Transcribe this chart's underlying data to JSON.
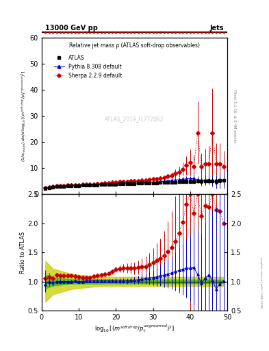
{
  "title_top": "13000 GeV pp",
  "title_right": "Jets",
  "plot_title": "Relative jet mass ρ (ATLAS soft-drop observables)",
  "watermark": "ATLAS_2019_I1772062",
  "right_label_top": "Rivet 3.1.10, ≥ 3.4M events",
  "right_label_bottom": "mcplots.cern.ch [arXiv:1306.3436]",
  "ylabel_ratio": "Ratio to ATLAS",
  "xlim": [
    0,
    50
  ],
  "ylim_main": [
    0,
    60
  ],
  "ylim_ratio": [
    0.5,
    2.5
  ],
  "yticks_main": [
    0,
    10,
    20,
    30,
    40,
    50,
    60
  ],
  "yticks_ratio": [
    0.5,
    1.0,
    1.5,
    2.0,
    2.5
  ],
  "xticks": [
    0,
    10,
    20,
    30,
    40,
    50
  ],
  "atlas_x": [
    1.0,
    2.0,
    3.0,
    4.0,
    5.0,
    6.0,
    7.0,
    8.0,
    9.0,
    10.0,
    11.0,
    12.0,
    13.0,
    14.0,
    15.0,
    16.0,
    17.0,
    18.0,
    19.0,
    20.0,
    21.0,
    22.0,
    23.0,
    24.0,
    25.0,
    26.0,
    27.0,
    28.0,
    29.0,
    30.0,
    31.0,
    32.0,
    33.0,
    34.0,
    35.0,
    36.0,
    37.0,
    38.0,
    39.0,
    40.0,
    41.0,
    42.0,
    43.0,
    44.0,
    45.0,
    46.0,
    47.0,
    48.0,
    49.0
  ],
  "atlas_y": [
    2.2,
    2.5,
    2.7,
    2.8,
    2.9,
    3.0,
    3.1,
    3.15,
    3.2,
    3.3,
    3.35,
    3.4,
    3.45,
    3.5,
    3.55,
    3.6,
    3.65,
    3.7,
    3.75,
    3.8,
    3.85,
    3.9,
    3.95,
    4.0,
    4.05,
    4.1,
    4.15,
    4.2,
    4.25,
    4.3,
    4.35,
    4.4,
    4.45,
    4.5,
    4.55,
    4.6,
    4.65,
    4.7,
    4.75,
    4.8,
    4.85,
    4.9,
    4.95,
    5.0,
    5.05,
    5.1,
    5.15,
    5.2,
    5.25
  ],
  "atlas_yerr": [
    0.25,
    0.15,
    0.12,
    0.1,
    0.09,
    0.08,
    0.08,
    0.07,
    0.07,
    0.07,
    0.07,
    0.07,
    0.07,
    0.07,
    0.07,
    0.07,
    0.07,
    0.07,
    0.07,
    0.08,
    0.08,
    0.09,
    0.1,
    0.1,
    0.12,
    0.13,
    0.14,
    0.16,
    0.18,
    0.2,
    0.22,
    0.25,
    0.28,
    0.32,
    0.36,
    0.4,
    0.45,
    0.5,
    0.55,
    0.6,
    0.65,
    0.75,
    0.85,
    0.95,
    1.1,
    1.3,
    1.5,
    1.7,
    2.0
  ],
  "pythia_x": [
    1.0,
    2.0,
    3.0,
    4.0,
    5.0,
    6.0,
    7.0,
    8.0,
    9.0,
    10.0,
    11.0,
    12.0,
    13.0,
    14.0,
    15.0,
    16.0,
    17.0,
    18.0,
    19.0,
    20.0,
    21.0,
    22.0,
    23.0,
    24.0,
    25.0,
    26.0,
    27.0,
    28.0,
    29.0,
    30.0,
    31.0,
    32.0,
    33.0,
    34.0,
    35.0,
    36.0,
    37.0,
    38.0,
    39.0,
    40.0,
    41.0,
    42.0,
    43.0,
    44.0,
    45.0,
    46.0,
    47.0,
    48.0,
    49.0
  ],
  "pythia_y": [
    2.1,
    2.5,
    2.65,
    2.8,
    2.9,
    3.0,
    3.1,
    3.15,
    3.22,
    3.3,
    3.36,
    3.42,
    3.47,
    3.52,
    3.57,
    3.62,
    3.67,
    3.72,
    3.77,
    3.82,
    3.9,
    3.95,
    4.0,
    4.08,
    4.15,
    4.22,
    4.3,
    4.4,
    4.5,
    4.6,
    4.72,
    4.85,
    4.95,
    5.1,
    5.25,
    5.4,
    5.55,
    5.7,
    5.85,
    5.9,
    6.0,
    5.5,
    4.8,
    5.3,
    5.6,
    5.2,
    4.5,
    5.0,
    5.3
  ],
  "pythia_yerr": [
    0.3,
    0.15,
    0.12,
    0.1,
    0.09,
    0.08,
    0.08,
    0.07,
    0.07,
    0.07,
    0.07,
    0.07,
    0.07,
    0.07,
    0.07,
    0.07,
    0.07,
    0.07,
    0.07,
    0.08,
    0.08,
    0.09,
    0.1,
    0.12,
    0.13,
    0.15,
    0.17,
    0.2,
    0.23,
    0.26,
    0.3,
    0.35,
    0.4,
    0.45,
    0.52,
    0.6,
    0.7,
    0.8,
    0.9,
    1.0,
    1.2,
    1.4,
    1.6,
    1.8,
    2.0,
    2.2,
    2.5,
    2.8,
    3.2
  ],
  "sherpa_x": [
    1.0,
    2.0,
    3.0,
    4.0,
    5.0,
    6.0,
    7.0,
    8.0,
    9.0,
    10.0,
    11.0,
    12.0,
    13.0,
    14.0,
    15.0,
    16.0,
    17.0,
    18.0,
    19.0,
    20.0,
    21.0,
    22.0,
    23.0,
    24.0,
    25.0,
    26.0,
    27.0,
    28.0,
    29.0,
    30.0,
    31.0,
    32.0,
    33.0,
    34.0,
    35.0,
    36.0,
    37.0,
    38.0,
    39.0,
    40.0,
    41.0,
    42.0,
    43.0,
    44.0,
    45.0,
    46.0,
    47.0,
    48.0,
    49.0
  ],
  "sherpa_y": [
    2.3,
    2.7,
    2.85,
    3.1,
    3.2,
    3.3,
    3.4,
    3.45,
    3.5,
    3.55,
    3.6,
    3.65,
    3.7,
    3.8,
    3.9,
    4.0,
    4.1,
    4.2,
    4.4,
    4.6,
    4.7,
    4.8,
    4.85,
    4.9,
    5.0,
    5.1,
    5.2,
    5.3,
    5.5,
    5.7,
    5.9,
    6.1,
    6.4,
    6.8,
    7.2,
    7.8,
    8.5,
    9.5,
    11.0,
    12.0,
    10.5,
    23.5,
    10.5,
    11.5,
    11.5,
    23.5,
    11.5,
    11.5,
    10.5
  ],
  "sherpa_yerr": [
    0.3,
    0.15,
    0.12,
    0.1,
    0.09,
    0.08,
    0.08,
    0.07,
    0.07,
    0.07,
    0.07,
    0.07,
    0.07,
    0.07,
    0.07,
    0.07,
    0.07,
    0.07,
    0.08,
    0.1,
    0.12,
    0.14,
    0.16,
    0.18,
    0.2,
    0.23,
    0.27,
    0.32,
    0.38,
    0.45,
    0.55,
    0.65,
    0.8,
    1.0,
    1.3,
    1.6,
    2.0,
    2.5,
    3.5,
    5.0,
    4.5,
    12.0,
    5.0,
    6.0,
    7.0,
    17.0,
    8.0,
    8.0,
    6.0
  ],
  "ratio_pythia_y": [
    0.95,
    1.0,
    0.98,
    1.0,
    1.0,
    1.0,
    1.0,
    1.0,
    1.01,
    1.0,
    1.0,
    1.01,
    1.01,
    1.01,
    1.01,
    1.01,
    1.01,
    1.01,
    1.01,
    1.01,
    1.01,
    1.01,
    1.01,
    1.02,
    1.02,
    1.03,
    1.04,
    1.05,
    1.06,
    1.07,
    1.08,
    1.1,
    1.11,
    1.13,
    1.15,
    1.17,
    1.19,
    1.21,
    1.23,
    1.23,
    1.24,
    1.12,
    0.97,
    1.06,
    1.11,
    1.02,
    0.87,
    0.96,
    1.01
  ],
  "ratio_pythia_yerr": [
    0.13,
    0.07,
    0.05,
    0.04,
    0.04,
    0.03,
    0.03,
    0.03,
    0.03,
    0.03,
    0.03,
    0.03,
    0.03,
    0.03,
    0.03,
    0.03,
    0.03,
    0.03,
    0.03,
    0.04,
    0.04,
    0.04,
    0.05,
    0.05,
    0.06,
    0.07,
    0.08,
    0.09,
    0.11,
    0.13,
    0.15,
    0.18,
    0.21,
    0.24,
    0.28,
    0.33,
    0.38,
    0.44,
    0.51,
    0.57,
    0.65,
    0.75,
    0.85,
    0.95,
    1.1,
    1.2,
    1.4,
    1.6,
    1.8
  ],
  "ratio_sherpa_y": [
    1.05,
    1.08,
    1.06,
    1.11,
    1.1,
    1.1,
    1.1,
    1.1,
    1.09,
    1.08,
    1.07,
    1.07,
    1.07,
    1.09,
    1.1,
    1.11,
    1.12,
    1.14,
    1.17,
    1.21,
    1.22,
    1.23,
    1.23,
    1.23,
    1.23,
    1.24,
    1.25,
    1.26,
    1.29,
    1.33,
    1.36,
    1.39,
    1.44,
    1.51,
    1.58,
    1.69,
    1.83,
    2.02,
    2.32,
    2.5,
    2.17,
    2.5,
    2.12,
    2.3,
    2.28,
    2.5,
    2.23,
    2.21,
    2.0
  ],
  "ratio_sherpa_yerr": [
    0.14,
    0.07,
    0.05,
    0.04,
    0.04,
    0.03,
    0.03,
    0.03,
    0.03,
    0.03,
    0.03,
    0.03,
    0.03,
    0.03,
    0.03,
    0.03,
    0.03,
    0.03,
    0.04,
    0.05,
    0.06,
    0.07,
    0.08,
    0.09,
    0.1,
    0.12,
    0.14,
    0.17,
    0.2,
    0.24,
    0.29,
    0.35,
    0.42,
    0.52,
    0.63,
    0.78,
    0.97,
    1.2,
    1.6,
    2.5,
    2.0,
    5.5,
    2.5,
    3.5,
    4.0,
    8.0,
    5.0,
    5.0,
    4.0
  ],
  "colors": {
    "atlas": "#000000",
    "pythia": "#0000cc",
    "sherpa": "#cc0000",
    "green_band": "#00bb00",
    "yellow_band": "#cccc00",
    "watermark": "#bbbbbb",
    "ratio_line": "#000000"
  }
}
